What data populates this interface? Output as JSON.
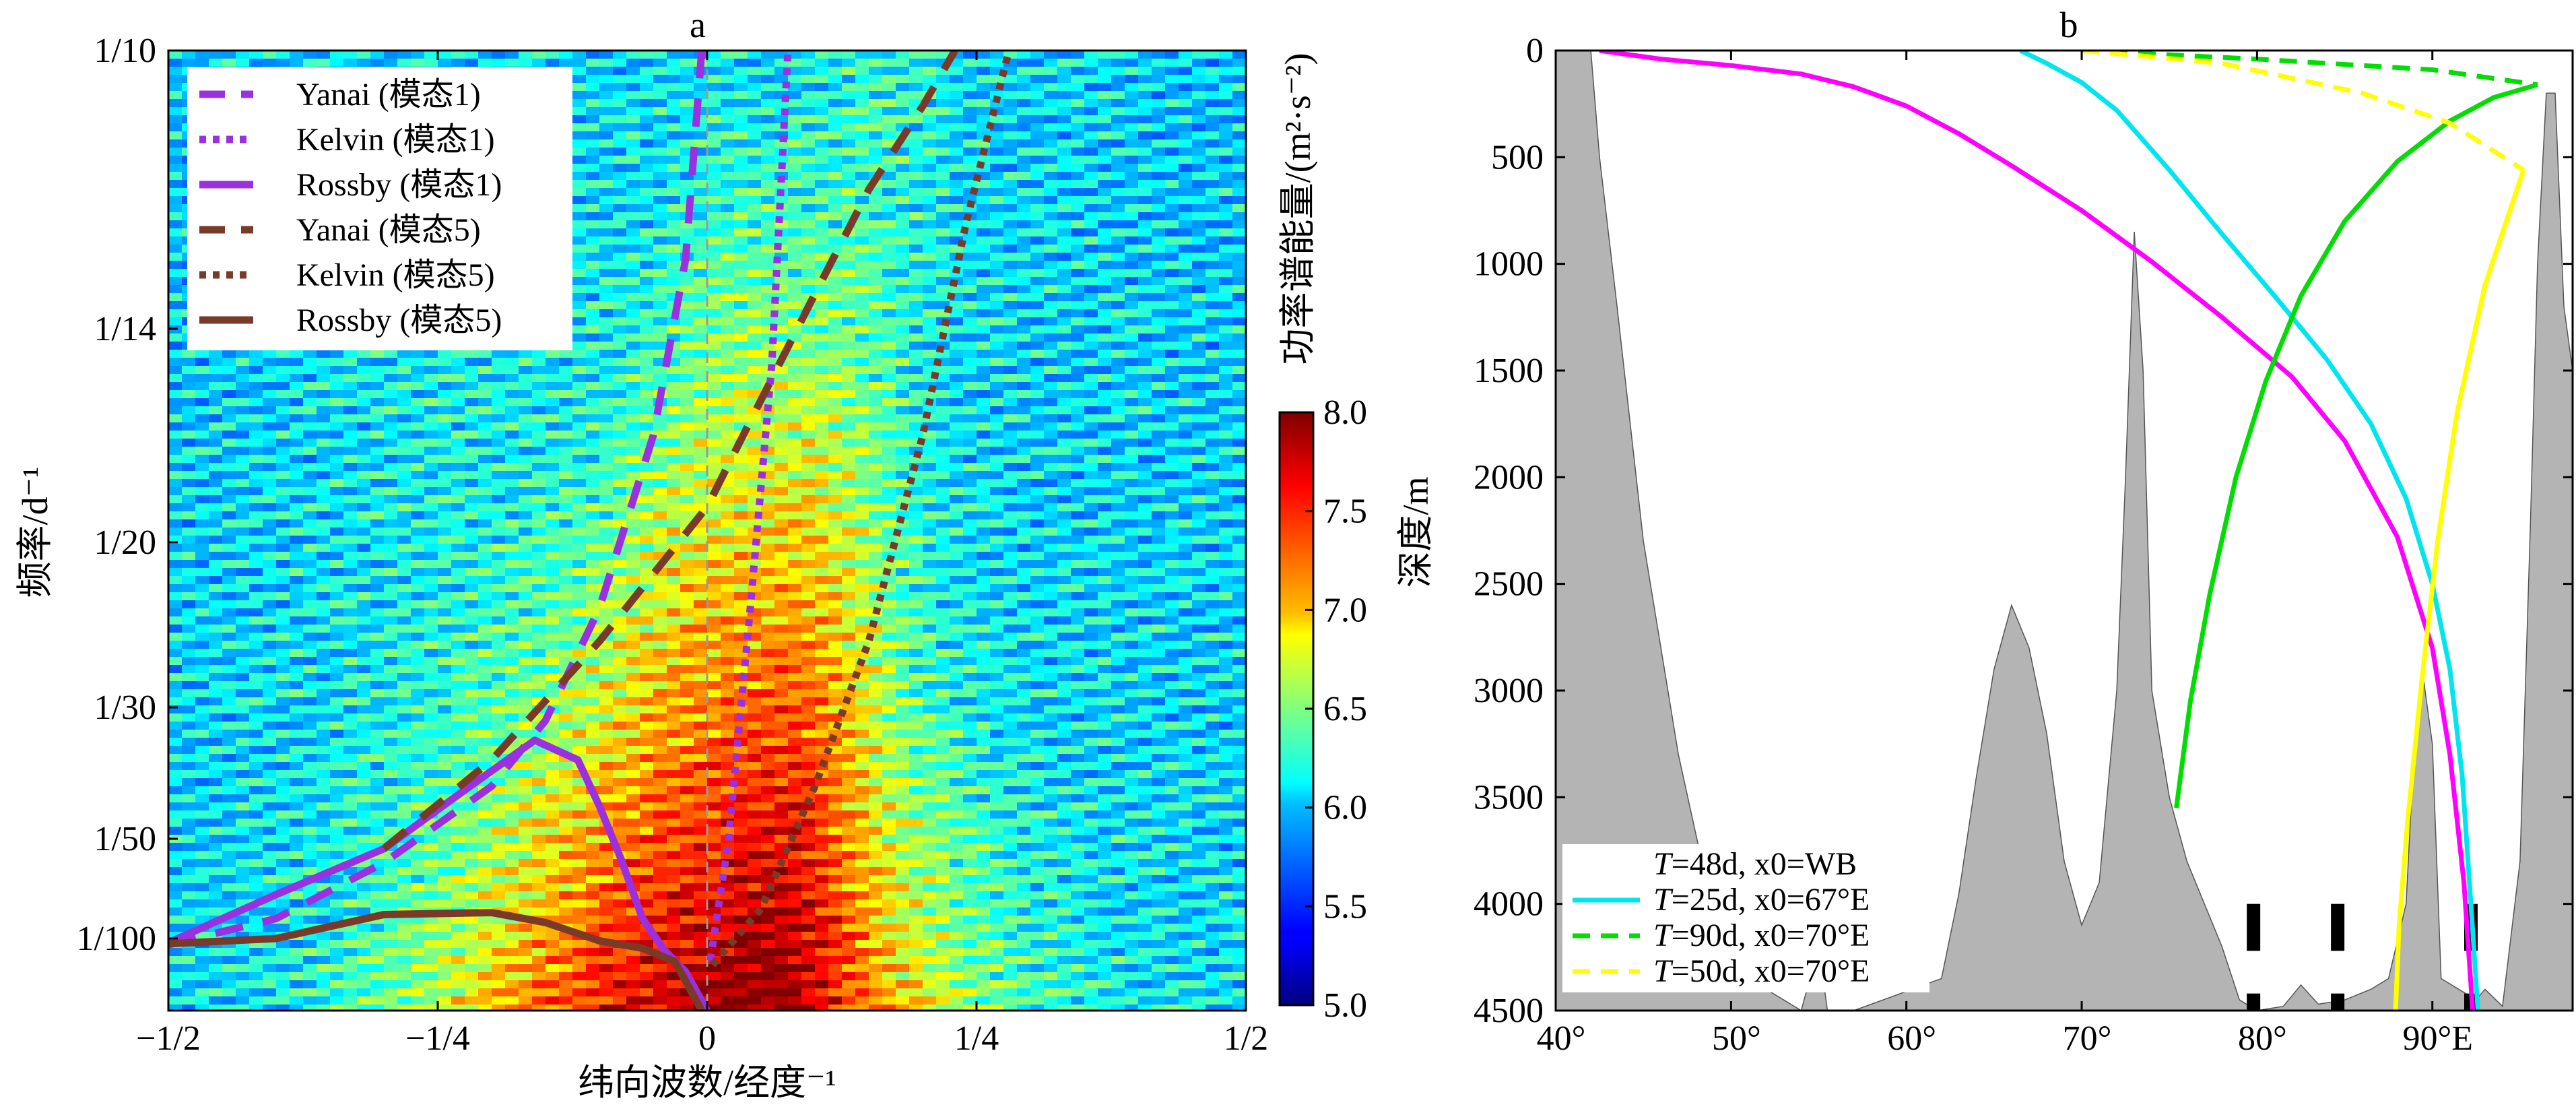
{
  "panels": {
    "a": "a",
    "b": "b"
  },
  "chart_data": [
    {
      "id": "a",
      "type": "heatmap",
      "title": "a",
      "xlabel": "纬向波数/经度⁻¹",
      "ylabel": "频率/d⁻¹",
      "xlim": [
        -0.5,
        0.5
      ],
      "xticks": [
        {
          "v": -0.5,
          "label": "−1/2"
        },
        {
          "v": -0.25,
          "label": "−1/4"
        },
        {
          "v": 0,
          "label": "0"
        },
        {
          "v": 0.25,
          "label": "1/4"
        },
        {
          "v": 0.5,
          "label": "1/2"
        }
      ],
      "yscale": "period",
      "yticks": [
        {
          "v": 10,
          "label": "1/10"
        },
        {
          "v": 14,
          "label": "1/14"
        },
        {
          "v": 20,
          "label": "1/20"
        },
        {
          "v": 30,
          "label": "1/30"
        },
        {
          "v": 50,
          "label": "1/50"
        },
        {
          "v": 100,
          "label": "1/100"
        }
      ],
      "colorbar": {
        "label": "功率谱能量/(m²·s⁻²)",
        "range": [
          5.0,
          8.0
        ],
        "ticks": [
          "5.0",
          "5.5",
          "6.0",
          "6.5",
          "7.0",
          "7.5",
          "8.0"
        ],
        "colormap": "jet"
      },
      "zero_line": {
        "x": 0,
        "color": "#9a9a9a"
      },
      "legend": {
        "position": "top-left",
        "entries": [
          {
            "label": "Yanai (模态1)",
            "color": "#9b30e0",
            "style": "dashed"
          },
          {
            "label": "Kelvin (模态1)",
            "color": "#9b30e0",
            "style": "dotted"
          },
          {
            "label": "Rossby (模态1)",
            "color": "#9b30e0",
            "style": "solid"
          },
          {
            "label": "Yanai (模态5)",
            "color": "#7a3a2a",
            "style": "dashed"
          },
          {
            "label": "Kelvin (模态5)",
            "color": "#7a3a2a",
            "style": "dotted"
          },
          {
            "label": "Rossby (模态5)",
            "color": "#7a3a2a",
            "style": "solid"
          }
        ]
      },
      "series": [
        {
          "name": "Yanai (模态1)",
          "color": "#9b30e0",
          "style": "dashed",
          "points": [
            [
              -0.5,
              130
            ],
            [
              -0.4,
              90
            ],
            [
              -0.3,
              62
            ],
            [
              -0.2,
              42
            ],
            [
              -0.15,
              32
            ],
            [
              -0.1,
              24
            ],
            [
              -0.05,
              17
            ],
            [
              -0.02,
              13
            ],
            [
              -0.005,
              10
            ]
          ]
        },
        {
          "name": "Kelvin (模态1)",
          "color": "#9b30e0",
          "style": "dotted",
          "points": [
            [
              0.003,
              250
            ],
            [
              0.02,
              50
            ],
            [
              0.04,
              24
            ],
            [
              0.06,
              15
            ],
            [
              0.075,
              10
            ]
          ]
        },
        {
          "name": "Rossby (模态1)",
          "color": "#9b30e0",
          "style": "solid",
          "points": [
            [
              -0.5,
              120
            ],
            [
              -0.4,
              78
            ],
            [
              -0.3,
              55
            ],
            [
              -0.22,
              42
            ],
            [
              -0.16,
              35
            ],
            [
              -0.12,
              38
            ],
            [
              -0.1,
              45
            ],
            [
              -0.08,
              60
            ],
            [
              -0.06,
              90
            ],
            [
              -0.04,
              160
            ],
            [
              -0.02,
              400
            ],
            [
              0,
              2000
            ]
          ]
        },
        {
          "name": "Yanai (模态5)",
          "color": "#7a3a2a",
          "style": "dashed",
          "points": [
            [
              -0.3,
              55
            ],
            [
              -0.2,
              38
            ],
            [
              -0.1,
              26
            ],
            [
              0,
              19
            ],
            [
              0.05,
              16
            ],
            [
              0.1,
              13.5
            ],
            [
              0.15,
              12
            ],
            [
              0.2,
              10.8
            ],
            [
              0.23,
              10
            ]
          ]
        },
        {
          "name": "Kelvin (模态5)",
          "color": "#7a3a2a",
          "style": "dotted",
          "points": [
            [
              0.005,
              300
            ],
            [
              0.05,
              85
            ],
            [
              0.1,
              42
            ],
            [
              0.15,
              26
            ],
            [
              0.2,
              17
            ],
            [
              0.24,
              12.5
            ],
            [
              0.28,
              10
            ]
          ]
        },
        {
          "name": "Rossby (模态5)",
          "color": "#7a3a2a",
          "style": "solid",
          "points": [
            [
              -0.5,
              125
            ],
            [
              -0.4,
              100
            ],
            [
              -0.3,
              88
            ],
            [
              -0.2,
              87
            ],
            [
              -0.15,
              92
            ],
            [
              -0.1,
              110
            ],
            [
              -0.06,
              150
            ],
            [
              -0.03,
              260
            ],
            [
              -0.005,
              2000
            ]
          ]
        }
      ]
    },
    {
      "id": "b",
      "type": "line",
      "title": "b",
      "xlabel": "",
      "ylabel": "深度/m",
      "xlim": [
        40,
        98
      ],
      "ylim": [
        4500,
        0
      ],
      "xticks": [
        {
          "v": 40,
          "label": "40°"
        },
        {
          "v": 50,
          "label": "50°"
        },
        {
          "v": 60,
          "label": "60°"
        },
        {
          "v": 70,
          "label": "70°"
        },
        {
          "v": 80,
          "label": "80°"
        },
        {
          "v": 90,
          "label": "90°E"
        }
      ],
      "yticks": [
        {
          "v": 0,
          "label": "0"
        },
        {
          "v": 500,
          "label": "500"
        },
        {
          "v": 1000,
          "label": "1000"
        },
        {
          "v": 1500,
          "label": "1500"
        },
        {
          "v": 2000,
          "label": "2000"
        },
        {
          "v": 2500,
          "label": "2500"
        },
        {
          "v": 3000,
          "label": "3000"
        },
        {
          "v": 3500,
          "label": "3500"
        },
        {
          "v": 4000,
          "label": "4000"
        },
        {
          "v": 4500,
          "label": "4500"
        }
      ],
      "topography": {
        "fill": "#b4b4b4",
        "depth_profile": [
          [
            40,
            0
          ],
          [
            42,
            0
          ],
          [
            42.5,
            500
          ],
          [
            43.5,
            1200
          ],
          [
            45,
            2300
          ],
          [
            47,
            3300
          ],
          [
            49,
            4050
          ],
          [
            52,
            4400
          ],
          [
            54,
            4500
          ],
          [
            55,
            4200
          ],
          [
            55.5,
            4500
          ],
          [
            57,
            4500
          ],
          [
            62,
            4350
          ],
          [
            63,
            3950
          ],
          [
            64,
            3400
          ],
          [
            65,
            2900
          ],
          [
            66,
            2600
          ],
          [
            67,
            2800
          ],
          [
            68,
            3200
          ],
          [
            69,
            3800
          ],
          [
            70,
            4100
          ],
          [
            71,
            3900
          ],
          [
            72,
            3000
          ],
          [
            72.5,
            2000
          ],
          [
            73,
            850
          ],
          [
            73.5,
            1500
          ],
          [
            74,
            3000
          ],
          [
            75,
            3500
          ],
          [
            76,
            3800
          ],
          [
            78,
            4200
          ],
          [
            79,
            4450
          ],
          [
            80,
            4500
          ],
          [
            81.5,
            4480
          ],
          [
            82.5,
            4380
          ],
          [
            83.5,
            4470
          ],
          [
            85,
            4450
          ],
          [
            86.5,
            4400
          ],
          [
            87.5,
            4350
          ],
          [
            88.5,
            4000
          ],
          [
            89,
            3200
          ],
          [
            89.5,
            2950
          ],
          [
            90,
            3250
          ],
          [
            90.5,
            4350
          ],
          [
            91.5,
            4400
          ],
          [
            92.5,
            4450
          ],
          [
            93,
            4400
          ],
          [
            94,
            4480
          ],
          [
            95,
            3800
          ],
          [
            95.6,
            2200
          ],
          [
            96,
            1000
          ],
          [
            96.5,
            200
          ],
          [
            97,
            200
          ],
          [
            97.5,
            1200
          ],
          [
            98,
            1500
          ]
        ]
      },
      "markers": {
        "depth_from": 4000,
        "depth_to": 4220,
        "x": [
          79.8,
          84.6,
          92.2
        ],
        "color": "#000000"
      },
      "legend": {
        "position": "bottom-left",
        "entries": [
          {
            "label": "T=48d, x0=WB",
            "T": "T",
            "text": "=48d, x0=WB",
            "color": "#ff00ff",
            "style": "solid"
          },
          {
            "label": "T=25d, x0=67°E",
            "T": "T",
            "text": "=25d, x0=67°E",
            "color": "#00e5ee",
            "style": "solid"
          },
          {
            "label": "T=90d, x0=70°E",
            "T": "T",
            "text": "=90d, x0=70°E",
            "color": "#00dd00",
            "style": "dashed"
          },
          {
            "label": "T=50d, x0=70°E",
            "T": "T",
            "text": "=50d, x0=70°E",
            "color": "#ffff00",
            "style": "dashed"
          }
        ]
      },
      "series": [
        {
          "name": "T=48d, x0=WB",
          "color": "#ff00ff",
          "style": "solid",
          "points": [
            [
              42.5,
              0
            ],
            [
              46,
              40
            ],
            [
              50,
              70
            ],
            [
              54,
              110
            ],
            [
              57,
              170
            ],
            [
              60,
              260
            ],
            [
              63,
              390
            ],
            [
              66,
              540
            ],
            [
              70,
              750
            ],
            [
              74,
              990
            ],
            [
              78,
              1250
            ],
            [
              82,
              1530
            ],
            [
              85,
              1830
            ],
            [
              88,
              2280
            ],
            [
              90,
              2800
            ],
            [
              91,
              3300
            ],
            [
              91.8,
              3900
            ],
            [
              92.3,
              4500
            ]
          ]
        },
        {
          "name": "T=25d, x0=67°E",
          "color": "#00e5ee",
          "style": "solid",
          "points": [
            [
              66.5,
              0
            ],
            [
              68,
              60
            ],
            [
              70,
              150
            ],
            [
              72,
              280
            ],
            [
              75,
              560
            ],
            [
              78,
              860
            ],
            [
              81,
              1150
            ],
            [
              84,
              1450
            ],
            [
              86.5,
              1750
            ],
            [
              88.5,
              2100
            ],
            [
              90,
              2500
            ],
            [
              91,
              2900
            ],
            [
              91.7,
              3400
            ],
            [
              92.2,
              4000
            ],
            [
              92.6,
              4500
            ]
          ]
        },
        {
          "name": "T=90d, x0=70°E",
          "color": "#00dd00",
          "style": "solid",
          "points": [
            [
              96,
              160
            ],
            [
              93.5,
              220
            ],
            [
              91,
              330
            ],
            [
              88,
              520
            ],
            [
              85,
              800
            ],
            [
              82.5,
              1150
            ],
            [
              80.5,
              1550
            ],
            [
              78.8,
              2000
            ],
            [
              77.3,
              2550
            ],
            [
              76.2,
              3050
            ],
            [
              75.4,
              3550
            ]
          ]
        },
        {
          "name": "T=90d, x0=70°E",
          "color": "#00dd00",
          "style": "dashed",
          "points": [
            [
              70,
              0
            ],
            [
              80,
              40
            ],
            [
              90,
              90
            ],
            [
              96,
              160
            ]
          ]
        },
        {
          "name": "T=50d, x0=70°E",
          "color": "#ffff00",
          "style": "solid",
          "points": [
            [
              95.2,
              560
            ],
            [
              93,
              1100
            ],
            [
              91.4,
              1700
            ],
            [
              90.3,
              2300
            ],
            [
              89.4,
              2950
            ],
            [
              88.6,
              3600
            ],
            [
              88.1,
              4100
            ],
            [
              87.9,
              4500
            ]
          ]
        },
        {
          "name": "T=50d, x0=70°E",
          "color": "#ffff00",
          "style": "dashed",
          "points": [
            [
              70,
              0
            ],
            [
              78,
              60
            ],
            [
              86,
              200
            ],
            [
              91,
              340
            ],
            [
              95.2,
              560
            ]
          ]
        }
      ]
    }
  ]
}
